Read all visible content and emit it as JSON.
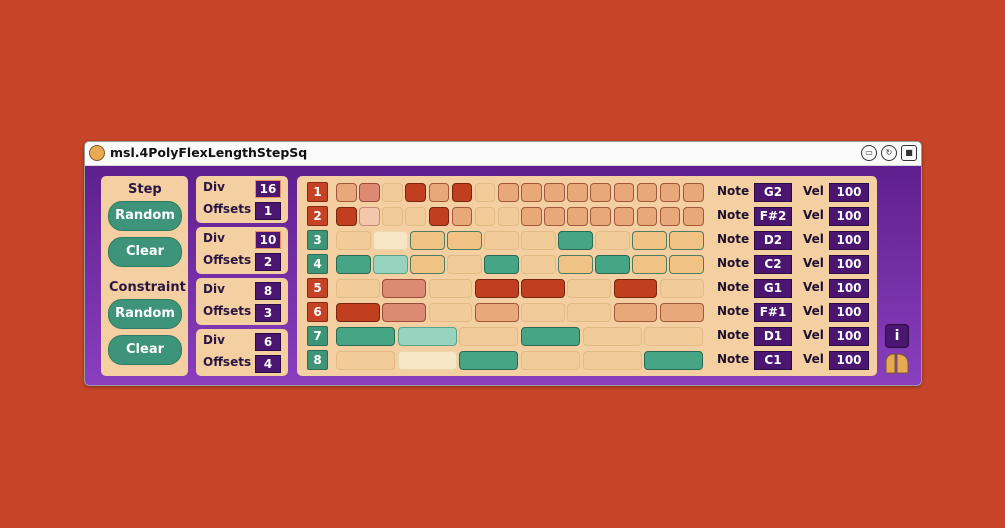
{
  "window": {
    "title": "msl.4PolyFlexLengthStepSq"
  },
  "titlebar": {
    "icons": [
      "frame-icon",
      "refresh-icon",
      "save-icon"
    ]
  },
  "left_panel": {
    "step_label": "Step",
    "step_random": "Random",
    "step_clear": "Clear",
    "constraint_label": "Constraint",
    "constraint_random": "Random",
    "constraint_clear": "Clear"
  },
  "div_groups": [
    {
      "div_label": "Div",
      "div_value": "16",
      "offsets_label": "Offsets",
      "offsets_value": "1"
    },
    {
      "div_label": "Div",
      "div_value": "10",
      "offsets_label": "Offsets",
      "offsets_value": "2"
    },
    {
      "div_label": "Div",
      "div_value": "8",
      "offsets_label": "Offsets",
      "offsets_value": "3"
    },
    {
      "div_label": "Div",
      "div_value": "6",
      "offsets_label": "Offsets",
      "offsets_value": "4"
    }
  ],
  "rows": [
    {
      "number": "1",
      "color": "orange",
      "steps": [
        "o1",
        "o2",
        "off",
        "o3",
        "o1",
        "o3",
        "off",
        "o1",
        "o1",
        "o1",
        "o1",
        "o1",
        "o1",
        "o1",
        "o1",
        "o1"
      ],
      "note_label": "Note",
      "note": "G2",
      "vel_label": "Vel",
      "vel": "100"
    },
    {
      "number": "2",
      "color": "orange",
      "steps": [
        "o3",
        "o4",
        "off",
        "off",
        "o3",
        "o1",
        "off",
        "off",
        "o1",
        "o1",
        "o1",
        "o1",
        "o1",
        "o1",
        "o1",
        "o1"
      ],
      "note_label": "Note",
      "note": "F#2",
      "vel_label": "Vel",
      "vel": "100"
    },
    {
      "number": "3",
      "color": "teal",
      "steps": [
        "off",
        "hl",
        "t3",
        "t3",
        "off",
        "off",
        "t1",
        "off",
        "t3",
        "t3"
      ],
      "note_label": "Note",
      "note": "D2",
      "vel_label": "Vel",
      "vel": "100"
    },
    {
      "number": "4",
      "color": "teal",
      "steps": [
        "t1",
        "t2",
        "t3",
        "off",
        "t1",
        "off",
        "t3",
        "t1",
        "t3",
        "t3"
      ],
      "note_label": "Note",
      "note": "C2",
      "vel_label": "Vel",
      "vel": "100"
    },
    {
      "number": "5",
      "color": "orange",
      "steps": [
        "off",
        "o2",
        "off",
        "o3",
        "o3",
        "off",
        "o3",
        "off"
      ],
      "note_label": "Note",
      "note": "G1",
      "vel_label": "Vel",
      "vel": "100"
    },
    {
      "number": "6",
      "color": "orange",
      "steps": [
        "o3",
        "o2",
        "off",
        "o1",
        "off",
        "off",
        "o1",
        "o1"
      ],
      "note_label": "Note",
      "note": "F#1",
      "vel_label": "Vel",
      "vel": "100"
    },
    {
      "number": "7",
      "color": "teal",
      "steps": [
        "t1",
        "t2",
        "off",
        "t1",
        "off",
        "off"
      ],
      "note_label": "Note",
      "note": "D1",
      "vel_label": "Vel",
      "vel": "100"
    },
    {
      "number": "8",
      "color": "teal",
      "steps": [
        "off",
        "hl",
        "t1",
        "off",
        "off",
        "t1"
      ],
      "note_label": "Note",
      "note": "C1",
      "vel_label": "Vel",
      "vel": "100"
    }
  ],
  "info_button": "i",
  "colors": {
    "background": "#c64428",
    "panel": "#f3cfa1",
    "purple": "#5f1f8d",
    "teal": "#3e9479",
    "orange": "#c54226"
  }
}
